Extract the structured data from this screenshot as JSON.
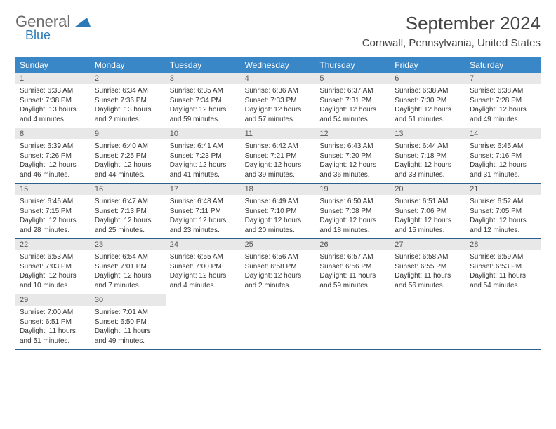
{
  "brand": {
    "general": "General",
    "blue": "Blue"
  },
  "title": "September 2024",
  "location": "Cornwall, Pennsylvania, United States",
  "colors": {
    "header_bg": "#3a87c8",
    "header_text": "#ffffff",
    "daynum_bg": "#e8e8e8",
    "border": "#2c5f8d",
    "body_text": "#333333",
    "logo_gray": "#6b6b6b",
    "logo_blue": "#2a7ab9"
  },
  "day_names": [
    "Sunday",
    "Monday",
    "Tuesday",
    "Wednesday",
    "Thursday",
    "Friday",
    "Saturday"
  ],
  "weeks": [
    [
      {
        "n": "1",
        "sr": "Sunrise: 6:33 AM",
        "ss": "Sunset: 7:38 PM",
        "dl": "Daylight: 13 hours and 4 minutes."
      },
      {
        "n": "2",
        "sr": "Sunrise: 6:34 AM",
        "ss": "Sunset: 7:36 PM",
        "dl": "Daylight: 13 hours and 2 minutes."
      },
      {
        "n": "3",
        "sr": "Sunrise: 6:35 AM",
        "ss": "Sunset: 7:34 PM",
        "dl": "Daylight: 12 hours and 59 minutes."
      },
      {
        "n": "4",
        "sr": "Sunrise: 6:36 AM",
        "ss": "Sunset: 7:33 PM",
        "dl": "Daylight: 12 hours and 57 minutes."
      },
      {
        "n": "5",
        "sr": "Sunrise: 6:37 AM",
        "ss": "Sunset: 7:31 PM",
        "dl": "Daylight: 12 hours and 54 minutes."
      },
      {
        "n": "6",
        "sr": "Sunrise: 6:38 AM",
        "ss": "Sunset: 7:30 PM",
        "dl": "Daylight: 12 hours and 51 minutes."
      },
      {
        "n": "7",
        "sr": "Sunrise: 6:38 AM",
        "ss": "Sunset: 7:28 PM",
        "dl": "Daylight: 12 hours and 49 minutes."
      }
    ],
    [
      {
        "n": "8",
        "sr": "Sunrise: 6:39 AM",
        "ss": "Sunset: 7:26 PM",
        "dl": "Daylight: 12 hours and 46 minutes."
      },
      {
        "n": "9",
        "sr": "Sunrise: 6:40 AM",
        "ss": "Sunset: 7:25 PM",
        "dl": "Daylight: 12 hours and 44 minutes."
      },
      {
        "n": "10",
        "sr": "Sunrise: 6:41 AM",
        "ss": "Sunset: 7:23 PM",
        "dl": "Daylight: 12 hours and 41 minutes."
      },
      {
        "n": "11",
        "sr": "Sunrise: 6:42 AM",
        "ss": "Sunset: 7:21 PM",
        "dl": "Daylight: 12 hours and 39 minutes."
      },
      {
        "n": "12",
        "sr": "Sunrise: 6:43 AM",
        "ss": "Sunset: 7:20 PM",
        "dl": "Daylight: 12 hours and 36 minutes."
      },
      {
        "n": "13",
        "sr": "Sunrise: 6:44 AM",
        "ss": "Sunset: 7:18 PM",
        "dl": "Daylight: 12 hours and 33 minutes."
      },
      {
        "n": "14",
        "sr": "Sunrise: 6:45 AM",
        "ss": "Sunset: 7:16 PM",
        "dl": "Daylight: 12 hours and 31 minutes."
      }
    ],
    [
      {
        "n": "15",
        "sr": "Sunrise: 6:46 AM",
        "ss": "Sunset: 7:15 PM",
        "dl": "Daylight: 12 hours and 28 minutes."
      },
      {
        "n": "16",
        "sr": "Sunrise: 6:47 AM",
        "ss": "Sunset: 7:13 PM",
        "dl": "Daylight: 12 hours and 25 minutes."
      },
      {
        "n": "17",
        "sr": "Sunrise: 6:48 AM",
        "ss": "Sunset: 7:11 PM",
        "dl": "Daylight: 12 hours and 23 minutes."
      },
      {
        "n": "18",
        "sr": "Sunrise: 6:49 AM",
        "ss": "Sunset: 7:10 PM",
        "dl": "Daylight: 12 hours and 20 minutes."
      },
      {
        "n": "19",
        "sr": "Sunrise: 6:50 AM",
        "ss": "Sunset: 7:08 PM",
        "dl": "Daylight: 12 hours and 18 minutes."
      },
      {
        "n": "20",
        "sr": "Sunrise: 6:51 AM",
        "ss": "Sunset: 7:06 PM",
        "dl": "Daylight: 12 hours and 15 minutes."
      },
      {
        "n": "21",
        "sr": "Sunrise: 6:52 AM",
        "ss": "Sunset: 7:05 PM",
        "dl": "Daylight: 12 hours and 12 minutes."
      }
    ],
    [
      {
        "n": "22",
        "sr": "Sunrise: 6:53 AM",
        "ss": "Sunset: 7:03 PM",
        "dl": "Daylight: 12 hours and 10 minutes."
      },
      {
        "n": "23",
        "sr": "Sunrise: 6:54 AM",
        "ss": "Sunset: 7:01 PM",
        "dl": "Daylight: 12 hours and 7 minutes."
      },
      {
        "n": "24",
        "sr": "Sunrise: 6:55 AM",
        "ss": "Sunset: 7:00 PM",
        "dl": "Daylight: 12 hours and 4 minutes."
      },
      {
        "n": "25",
        "sr": "Sunrise: 6:56 AM",
        "ss": "Sunset: 6:58 PM",
        "dl": "Daylight: 12 hours and 2 minutes."
      },
      {
        "n": "26",
        "sr": "Sunrise: 6:57 AM",
        "ss": "Sunset: 6:56 PM",
        "dl": "Daylight: 11 hours and 59 minutes."
      },
      {
        "n": "27",
        "sr": "Sunrise: 6:58 AM",
        "ss": "Sunset: 6:55 PM",
        "dl": "Daylight: 11 hours and 56 minutes."
      },
      {
        "n": "28",
        "sr": "Sunrise: 6:59 AM",
        "ss": "Sunset: 6:53 PM",
        "dl": "Daylight: 11 hours and 54 minutes."
      }
    ],
    [
      {
        "n": "29",
        "sr": "Sunrise: 7:00 AM",
        "ss": "Sunset: 6:51 PM",
        "dl": "Daylight: 11 hours and 51 minutes."
      },
      {
        "n": "30",
        "sr": "Sunrise: 7:01 AM",
        "ss": "Sunset: 6:50 PM",
        "dl": "Daylight: 11 hours and 49 minutes."
      },
      null,
      null,
      null,
      null,
      null
    ]
  ]
}
